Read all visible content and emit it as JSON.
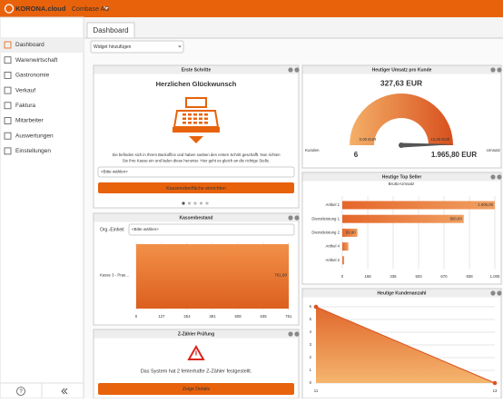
{
  "header": {
    "brand": "KORONA.cloud",
    "company": "Combase AG"
  },
  "sidebar": {
    "items": [
      "Dashboard",
      "Warenwirtschaft",
      "Gastronomie",
      "Verkauf",
      "Faktura",
      "Mitarbeiter",
      "Auswertungen",
      "Einstellungen"
    ],
    "help": "?"
  },
  "tab": "Dashboard",
  "widget_select": "Widget hinzufügen",
  "widgets": {
    "first_steps": {
      "title": "Erste Schritte",
      "heading": "Herzlichen Glückwunsch",
      "text_lines": [
        "Sie befinden sich in Ihrem Backoffice und haben soeben den ersten Schritt geschafft. Nun richten",
        "Sie Ihre Kasse ein und laden diese herunter. Hier geht es gleich an die richtige Stelle."
      ],
      "select": "<Bitte wählen>",
      "button": "Kassenoberfläche einrichten"
    },
    "cash": {
      "title": "Kassenbestand",
      "org_label": "Org.-Einheit",
      "select": "<Bitte wählen>",
      "categories": [
        "Kasse 3 - Prae..."
      ],
      "values": [
        761.8
      ],
      "value_labels": [
        "761,80"
      ],
      "xlim": [
        0,
        761.8
      ],
      "xticks": [
        0,
        127,
        254,
        381,
        508,
        635,
        761
      ]
    },
    "zcount": {
      "title": "Z-Zähler Prüfung",
      "text": "Das System hat 2 fehlerhafte Z-Zähler festgestellt.",
      "button": "Zeige Details"
    },
    "revenue": {
      "title": "Heutiger Umsatz pro Kunde",
      "value": "327,63 EUR",
      "min_label": "0,00 EUR",
      "max_label": "10,00 EUR",
      "customers_label": "Kunden",
      "customers": 6,
      "revenue_label": "Umsatz",
      "revenue": "1.965,80 EUR"
    },
    "top": {
      "title": "Heutige Top Seller",
      "subtitle": "Brutto-Umsatz",
      "categories": [
        "Artikel 1",
        "Dienstleistung 1",
        "Dienstleistung 2",
        "Artikel 4",
        "Artikel 2"
      ],
      "values": [
        1005,
        800,
        99.9,
        40,
        12
      ],
      "value_labels": [
        "1.005,00",
        "800,00",
        "99,90",
        null,
        null
      ],
      "xlim": [
        0,
        1005
      ],
      "xticks": [
        0,
        168,
        335,
        503,
        670,
        838,
        {
          "value": 1005,
          "label": "1.005"
        }
      ]
    },
    "customers": {
      "title": "Heutige Kundenanzahl",
      "x": [
        11,
        13
      ],
      "values": [
        6,
        0
      ],
      "xlim": [
        11,
        13
      ],
      "xticks": [
        11,
        13
      ],
      "ylim": [
        0,
        6
      ],
      "yticks": [
        0,
        1,
        2,
        3,
        4,
        5,
        6
      ]
    }
  }
}
